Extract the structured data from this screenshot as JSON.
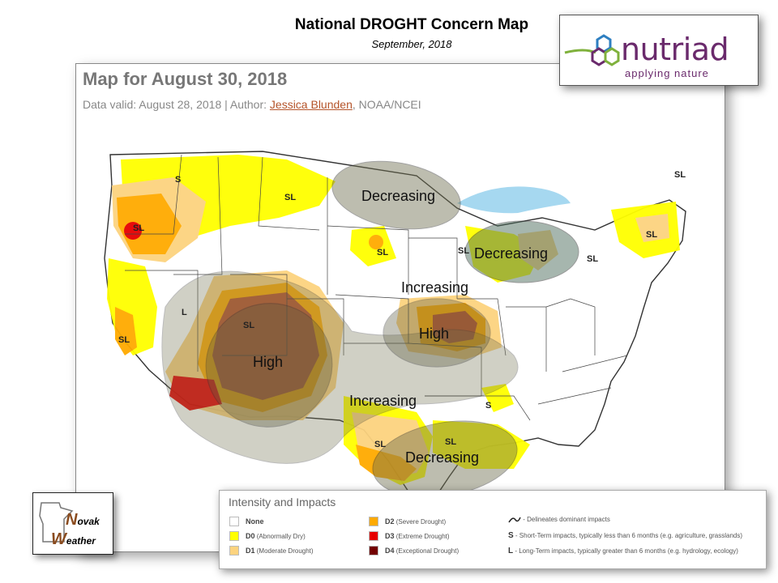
{
  "header": {
    "title": "National DROGHT Concern Map",
    "subtitle": "September, 2018"
  },
  "map": {
    "heading": "Map for August 30, 2018",
    "meta_prefix": "Data valid: August 28, 2018 | Author: ",
    "author": "Jessica Blunden",
    "meta_suffix": ", NOAA/NCEI",
    "region_labels": {
      "decreasing_north": "Decreasing",
      "decreasing_greatlakes": "Decreasing",
      "decreasing_south": "Decreasing",
      "increasing_midwest": "Increasing",
      "increasing_southwest": "Increasing",
      "high_west": "High",
      "high_midwest": "High"
    },
    "impact_markers": {
      "pnw_s": "S",
      "mt_sl": "SL",
      "or_sl": "SL",
      "ca_sl": "SL",
      "nv_l": "L",
      "co_sl": "SL",
      "ne_sl": "SL",
      "wi_sl": "SL",
      "mi_sl": "SL",
      "ny_sl": "SL",
      "ms_s": "S",
      "la_sl": "SL",
      "tx_sl": "SL",
      "ne_coast_sl": "SL"
    }
  },
  "logo": {
    "word": "nutriad",
    "tagline": "applying nature"
  },
  "badge": {
    "line1": "ovak",
    "line2": "eather",
    "cap1": "N",
    "cap2": "W"
  },
  "legend": {
    "title": "Intensity and Impacts",
    "items": [
      {
        "code": "None",
        "text": "",
        "color": "#ffffff"
      },
      {
        "code": "D0",
        "text": "(Abnormally Dry)",
        "color": "#ffff00"
      },
      {
        "code": "D1",
        "text": "(Moderate Drought)",
        "color": "#fcd37f"
      },
      {
        "code": "D2",
        "text": "(Severe Drought)",
        "color": "#ffaa00"
      },
      {
        "code": "D3",
        "text": "(Extreme Drought)",
        "color": "#e60000"
      },
      {
        "code": "D4",
        "text": "(Exceptional Drought)",
        "color": "#730000"
      }
    ],
    "impacts": [
      {
        "key": "",
        "text": "- Delineates dominant impacts"
      },
      {
        "key": "S",
        "text": "- Short-Term impacts, typically less than 6 months (e.g. agriculture, grasslands)"
      },
      {
        "key": "L",
        "text": "- Long-Term impacts, typically greater than 6 months (e.g. hydrology, ecology)"
      }
    ]
  },
  "colors": {
    "d0": "#ffff00",
    "d1": "#fcd37f",
    "d2": "#ffaa00",
    "d3": "#e60000",
    "d4": "#730000",
    "water": "#a6d8f0",
    "overlay": "#6f6f4f",
    "logo_purple": "#6a2a6c"
  }
}
